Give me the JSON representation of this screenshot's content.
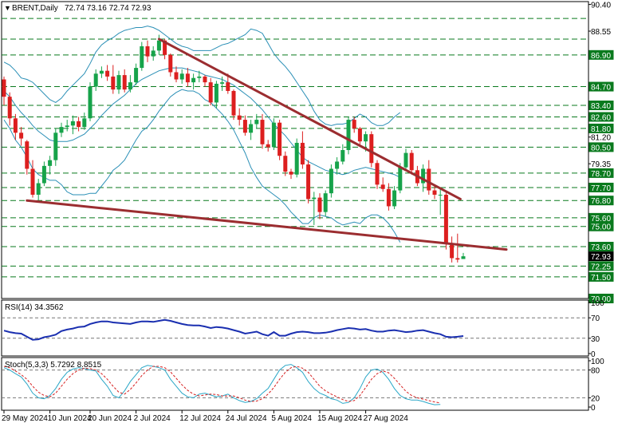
{
  "header": {
    "symbol": "BRENT,Daily",
    "ohlc": "72.74 73.16 72.74 72.93"
  },
  "chart_data": [
    {
      "type": "candlestick",
      "title": "BRENT,Daily",
      "ylim": [
        70.0,
        90.6
      ],
      "y_ticks": [
        "90.40",
        "88.55",
        "86.90",
        "84.70",
        "83.40",
        "82.60",
        "81.80",
        "81.20",
        "80.50",
        "79.35",
        "78.70",
        "77.70",
        "76.80",
        "75.60",
        "75.00",
        "73.60",
        "72.93",
        "72.25",
        "71.50",
        "70.00"
      ],
      "y_ticks_at": [
        90.4,
        88.55,
        86.9,
        84.7,
        83.4,
        82.6,
        81.8,
        81.2,
        80.5,
        79.35,
        78.7,
        77.7,
        76.8,
        75.6,
        75.0,
        73.6,
        72.93,
        72.25,
        71.5,
        70.0
      ],
      "highlighted_levels": [
        "89.43",
        "88.00",
        "86.90",
        "84.70",
        "83.40",
        "82.60",
        "81.80",
        "80.50",
        "78.70",
        "77.70",
        "76.80",
        "75.60",
        "75.00",
        "73.60",
        "72.93",
        "72.25",
        "71.50",
        "70.00"
      ],
      "dashed_levels": [
        89.43,
        88.0,
        86.9,
        84.7,
        83.4,
        82.6,
        81.8,
        80.5,
        78.7,
        77.7,
        76.8,
        75.6,
        75.0,
        73.6,
        72.25,
        71.5
      ],
      "x_labels": [
        "29 May 2024",
        "10 Jun 2024",
        "20 Jun 2024",
        "2 Jul 2024",
        "12 Jul 2024",
        "24 Jul 2024",
        "5 Aug 2024",
        "15 Aug 2024",
        "27 Aug 2024"
      ],
      "x_labels_at": [
        0,
        8,
        15,
        23,
        31,
        39,
        47,
        55,
        63
      ],
      "candles": [
        [
          85.2,
          85.4,
          83.4,
          84.0
        ],
        [
          84.0,
          84.3,
          82.0,
          82.5
        ],
        [
          82.5,
          82.8,
          81.0,
          81.5
        ],
        [
          81.5,
          81.9,
          80.6,
          81.1
        ],
        [
          80.9,
          81.0,
          78.6,
          79.0
        ],
        [
          79.0,
          79.6,
          77.0,
          77.2
        ],
        [
          77.2,
          78.3,
          76.8,
          78.0
        ],
        [
          78.0,
          79.5,
          77.8,
          79.2
        ],
        [
          79.2,
          79.9,
          78.6,
          79.6
        ],
        [
          79.6,
          81.8,
          79.2,
          81.5
        ],
        [
          81.5,
          82.2,
          81.2,
          81.9
        ],
        [
          81.9,
          82.4,
          81.6,
          82.0
        ],
        [
          82.0,
          82.7,
          81.4,
          82.3
        ],
        [
          82.3,
          82.6,
          81.6,
          81.9
        ],
        [
          81.9,
          82.9,
          81.7,
          82.5
        ],
        [
          82.5,
          85.0,
          82.3,
          84.7
        ],
        [
          84.7,
          85.9,
          84.4,
          85.6
        ],
        [
          85.6,
          86.1,
          85.3,
          85.8
        ],
        [
          85.8,
          86.2,
          85.1,
          85.4
        ],
        [
          85.4,
          86.2,
          84.2,
          84.5
        ],
        [
          84.5,
          85.8,
          84.2,
          85.5
        ],
        [
          85.5,
          85.9,
          84.3,
          84.5
        ],
        [
          84.5,
          85.5,
          84.3,
          85.0
        ],
        [
          85.0,
          86.3,
          84.8,
          86.0
        ],
        [
          86.0,
          87.8,
          85.8,
          87.5
        ],
        [
          87.5,
          87.9,
          86.4,
          86.8
        ],
        [
          86.8,
          87.5,
          86.5,
          87.2
        ],
        [
          87.2,
          88.3,
          86.9,
          87.9
        ],
        [
          87.9,
          88.0,
          86.6,
          86.9
        ],
        [
          86.9,
          87.0,
          85.4,
          85.7
        ],
        [
          85.7,
          86.1,
          85.0,
          85.2
        ],
        [
          85.2,
          85.9,
          84.9,
          85.6
        ],
        [
          85.6,
          86.0,
          84.7,
          85.0
        ],
        [
          85.0,
          85.6,
          84.5,
          85.3
        ],
        [
          85.3,
          85.8,
          85.0,
          85.4
        ],
        [
          85.4,
          85.5,
          84.7,
          85.0
        ],
        [
          85.0,
          85.3,
          83.4,
          83.6
        ],
        [
          83.6,
          85.1,
          83.2,
          84.9
        ],
        [
          84.9,
          85.4,
          84.4,
          85.0
        ],
        [
          85.0,
          85.6,
          84.2,
          84.4
        ],
        [
          84.4,
          84.5,
          82.4,
          82.7
        ],
        [
          82.7,
          83.2,
          82.0,
          82.4
        ],
        [
          82.4,
          82.7,
          81.3,
          81.5
        ],
        [
          81.5,
          82.4,
          81.0,
          82.1
        ],
        [
          82.1,
          82.8,
          81.8,
          82.4
        ],
        [
          82.4,
          82.8,
          80.4,
          80.7
        ],
        [
          80.7,
          81.0,
          80.2,
          80.5
        ],
        [
          80.5,
          82.5,
          80.3,
          82.2
        ],
        [
          82.2,
          82.4,
          79.6,
          79.9
        ],
        [
          79.9,
          80.2,
          78.5,
          78.8
        ],
        [
          78.8,
          79.0,
          78.3,
          78.6
        ],
        [
          78.6,
          81.1,
          78.4,
          80.8
        ],
        [
          80.8,
          81.6,
          79.0,
          79.3
        ],
        [
          79.3,
          79.6,
          76.6,
          76.9
        ],
        [
          76.9,
          77.4,
          75.1,
          77.0
        ],
        [
          77.0,
          77.3,
          75.5,
          76.0
        ],
        [
          76.0,
          77.5,
          75.7,
          77.3
        ],
        [
          77.3,
          79.3,
          77.0,
          79.0
        ],
        [
          79.0,
          79.8,
          78.6,
          79.5
        ],
        [
          79.5,
          80.7,
          79.3,
          80.3
        ],
        [
          80.3,
          82.6,
          80.0,
          82.4
        ],
        [
          82.4,
          82.6,
          81.5,
          81.8
        ],
        [
          81.8,
          81.9,
          80.7,
          80.9
        ],
        [
          80.9,
          81.6,
          80.2,
          81.4
        ],
        [
          81.4,
          81.6,
          79.1,
          79.4
        ],
        [
          79.4,
          79.6,
          77.6,
          77.9
        ],
        [
          77.9,
          78.4,
          77.4,
          77.6
        ],
        [
          77.6,
          78.0,
          76.1,
          76.4
        ],
        [
          76.4,
          77.8,
          76.2,
          77.5
        ],
        [
          77.5,
          79.4,
          77.3,
          79.1
        ],
        [
          79.1,
          80.4,
          78.9,
          80.1
        ],
        [
          80.1,
          80.3,
          78.6,
          78.9
        ],
        [
          78.9,
          79.2,
          77.8,
          78.0
        ],
        [
          78.0,
          79.3,
          77.4,
          79.0
        ],
        [
          79.0,
          79.6,
          77.2,
          77.5
        ],
        [
          77.5,
          77.9,
          76.9,
          77.2
        ],
        [
          77.2,
          77.6,
          75.8,
          77.2
        ],
        [
          77.2,
          77.4,
          73.4,
          73.8
        ],
        [
          73.8,
          74.3,
          72.5,
          72.8
        ],
        [
          72.8,
          74.5,
          72.5,
          72.7
        ],
        [
          72.74,
          73.16,
          72.74,
          72.93
        ]
      ],
      "bollinger": {
        "upper": [
          86.4,
          86.2,
          85.8,
          85.3,
          85.2,
          85.0,
          84.6,
          84.2,
          83.8,
          83.6,
          83.9,
          84.4,
          84.8,
          85.2,
          85.6,
          86.3,
          87.1,
          87.6,
          87.9,
          88.1,
          88.4,
          88.6,
          88.7,
          88.8,
          88.8,
          88.9,
          88.8,
          88.6,
          88.3,
          88.0,
          87.7,
          87.5,
          87.4,
          87.2,
          87.2,
          87.2,
          87.2,
          87.4,
          87.6,
          87.7,
          87.9,
          88.1,
          88.3,
          88.7,
          88.6,
          88.4,
          87.7,
          87.0,
          86.5,
          86.1,
          85.6,
          85.0,
          84.4,
          83.8,
          83.0,
          82.4,
          82.1,
          82.0,
          82.1,
          82.1,
          82.2,
          82.5,
          82.8,
          82.6,
          82.2,
          82.0,
          82.0,
          82.2,
          82.6,
          82.9
        ],
        "middle": [
          84.4,
          84.0,
          83.4,
          82.9,
          82.5,
          82.0,
          81.6,
          81.3,
          81.0,
          80.9,
          80.9,
          80.9,
          81.0,
          81.2,
          81.4,
          81.8,
          82.2,
          82.7,
          83.1,
          83.5,
          83.8,
          84.1,
          84.5,
          84.9,
          85.2,
          85.4,
          85.6,
          85.8,
          85.9,
          86.0,
          86.0,
          86.0,
          85.9,
          85.8,
          85.7,
          85.5,
          85.4,
          85.3,
          85.2,
          85.0,
          84.8,
          84.5,
          84.2,
          83.9,
          83.5,
          83.1,
          82.6,
          82.1,
          81.7,
          81.3,
          80.8,
          80.3,
          79.8,
          79.5,
          79.3,
          79.1,
          78.9,
          78.8,
          78.7,
          78.6,
          78.7,
          78.9,
          79.0,
          79.1,
          79.0,
          78.9,
          78.8,
          78.7,
          78.6,
          78.4
        ],
        "lower": [
          82.4,
          81.8,
          81.0,
          80.5,
          79.8,
          79.0,
          78.6,
          78.4,
          78.2,
          78.2,
          77.9,
          77.4,
          77.2,
          77.2,
          77.2,
          77.3,
          77.3,
          77.8,
          78.3,
          78.9,
          79.2,
          79.6,
          80.3,
          81.0,
          81.6,
          81.9,
          82.4,
          83.0,
          83.5,
          84.0,
          84.3,
          84.5,
          84.4,
          84.4,
          84.2,
          83.8,
          83.6,
          83.2,
          82.8,
          82.3,
          81.7,
          80.9,
          80.1,
          79.1,
          78.4,
          77.8,
          77.5,
          77.2,
          76.9,
          76.5,
          76.0,
          75.6,
          75.2,
          75.2,
          75.6,
          75.8,
          75.7,
          75.6,
          75.3,
          75.1,
          75.2,
          75.3,
          75.2,
          75.6,
          75.8,
          75.8,
          75.6,
          75.2,
          74.6,
          73.9
        ]
      },
      "trendlines": [
        {
          "from": [
            27,
            88.0
          ],
          "to": [
            79.5,
            76.9
          ]
        },
        {
          "from": [
            4,
            76.8
          ],
          "to": [
            87.5,
            73.4
          ]
        }
      ]
    },
    {
      "type": "line",
      "title": "RSI(14) 34.3562",
      "ylim": [
        0,
        100
      ],
      "y_ticks": [
        "100",
        "70",
        "30",
        "0"
      ],
      "y_ticks_at": [
        100,
        70,
        30,
        0
      ],
      "levels": [
        70,
        30
      ],
      "series": [
        {
          "values": [
            45,
            42,
            40,
            39,
            33,
            27,
            28,
            32,
            34,
            37,
            44,
            47,
            49,
            52,
            53,
            58,
            61,
            63,
            63,
            61,
            60,
            59,
            58,
            61,
            63,
            63,
            62,
            64,
            66,
            64,
            61,
            58,
            56,
            55,
            55,
            53,
            50,
            52,
            51,
            49,
            46,
            43,
            39,
            41,
            43,
            38,
            35,
            42,
            35,
            35,
            39,
            42,
            43,
            42,
            40,
            40,
            41,
            43,
            46,
            48,
            50,
            49,
            47,
            48,
            45,
            43,
            43,
            45,
            46,
            44,
            42,
            43,
            45,
            46,
            43,
            40,
            38,
            33,
            32,
            33,
            34.36
          ]
        }
      ]
    },
    {
      "type": "line",
      "title": "Stoch(5,3,3) 5.7292 8.8515",
      "ylim": [
        0,
        100
      ],
      "y_ticks": [
        "100",
        "80",
        "20",
        "0"
      ],
      "y_ticks_at": [
        100,
        80,
        20,
        0
      ],
      "levels": [
        80,
        20
      ],
      "series": [
        {
          "values": [
            85,
            80,
            72,
            65,
            50,
            30,
            20,
            18,
            25,
            40,
            60,
            75,
            82,
            85,
            83,
            80,
            78,
            60,
            45,
            25,
            20,
            35,
            55,
            70,
            85,
            90,
            88,
            85,
            80,
            60,
            45,
            30,
            22,
            20,
            28,
            30,
            26,
            22,
            24,
            28,
            20,
            14,
            10,
            12,
            18,
            30,
            40,
            60,
            80,
            90,
            92,
            85,
            75,
            55,
            40,
            30,
            25,
            18,
            15,
            8,
            10,
            20,
            40,
            65,
            80,
            82,
            75,
            60,
            40,
            25,
            18,
            15,
            15,
            12,
            8,
            5,
            5.73
          ]
        },
        {
          "values": [
            88,
            85,
            78,
            70,
            60,
            45,
            32,
            25,
            22,
            30,
            45,
            60,
            72,
            80,
            84,
            83,
            80,
            72,
            60,
            45,
            32,
            28,
            38,
            52,
            68,
            80,
            88,
            88,
            85,
            76,
            62,
            48,
            36,
            28,
            24,
            26,
            28,
            27,
            24,
            24,
            24,
            20,
            15,
            12,
            13,
            18,
            28,
            42,
            60,
            75,
            85,
            88,
            84,
            75,
            60,
            45,
            35,
            28,
            22,
            16,
            12,
            14,
            25,
            42,
            60,
            72,
            78,
            74,
            62,
            48,
            34,
            25,
            20,
            17,
            14,
            11,
            8.85
          ]
        }
      ]
    }
  ],
  "colors": {
    "bull": "#16a34a",
    "bear": "#dc1f1f",
    "trendline": "#9b2d30",
    "bollinger": "#2a8fb6",
    "grid": "#0a7a1e",
    "rsi_line": "#1a2fb0",
    "stoch_main": "#2aa7c7",
    "stoch_signal": "#d62020",
    "badge_fill": "#0a7a1e",
    "badge_text": "#ffffff",
    "price_badge_fill": "#000000"
  }
}
